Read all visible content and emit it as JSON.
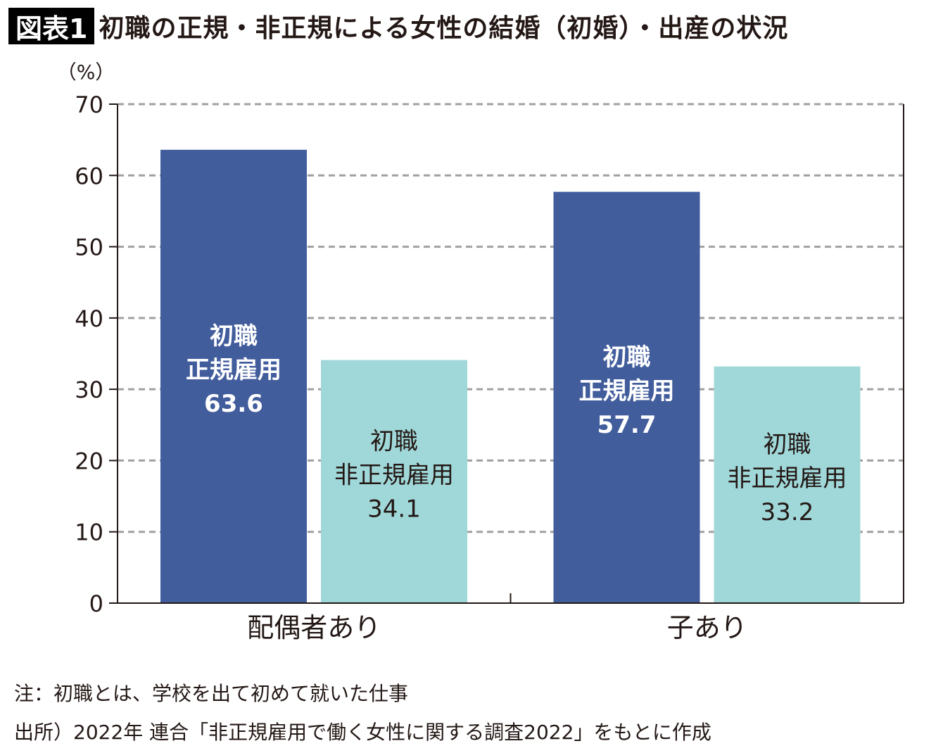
{
  "header": {
    "badge": "図表1",
    "title": "初職の正規・非正規による女性の結婚（初婚）・出産の状況"
  },
  "chart_data": {
    "type": "bar",
    "ylabel": "（%）",
    "ylim": [
      0,
      70
    ],
    "yticks": [
      0,
      10,
      20,
      30,
      40,
      50,
      60,
      70
    ],
    "grid": true,
    "categories": [
      "配偶者あり",
      "子あり"
    ],
    "series": [
      {
        "name": "初職 正規雇用",
        "label_lines": [
          "初職",
          "正規雇用"
        ],
        "values": [
          63.6,
          57.7
        ],
        "color": "#425d9c",
        "label_color": "#ffffff",
        "label_bold": true
      },
      {
        "name": "初職 非正規雇用",
        "label_lines": [
          "初職",
          "非正規雇用"
        ],
        "values": [
          34.1,
          33.2
        ],
        "color": "#a0d8d9",
        "label_color": "#231815",
        "label_bold": false
      }
    ]
  },
  "notes": {
    "note": "注：初職とは、学校を出て初めて就いた仕事",
    "source": "出所）2022年 連合「非正規雇用で働く女性に関する調査2022」をもとに作成"
  }
}
